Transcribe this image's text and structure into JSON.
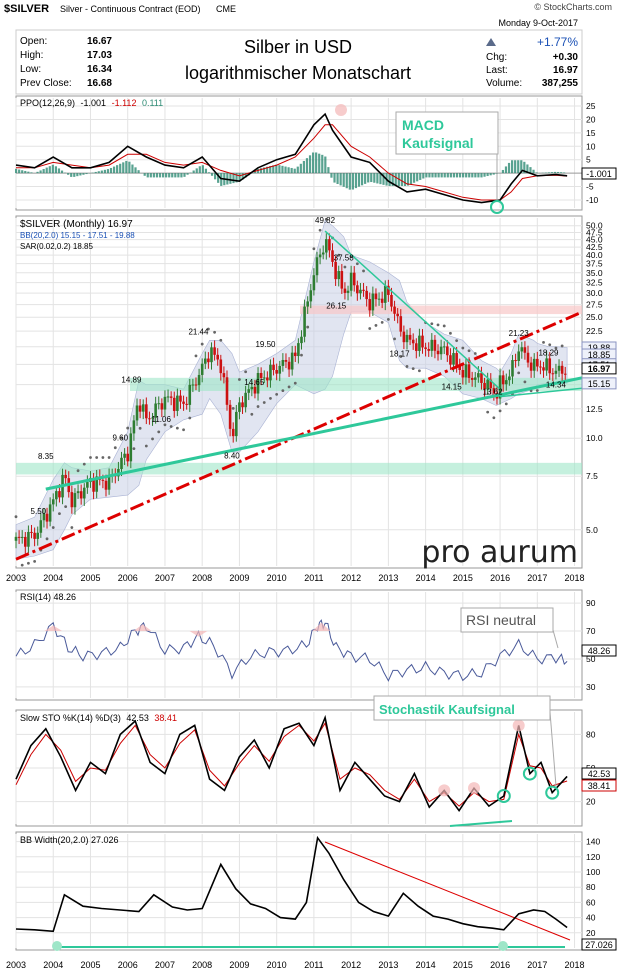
{
  "header": {
    "symbol": "$SILVER",
    "description": "Silver - Continuous Contract (EOD)",
    "exchange": "CME",
    "credit": "© StockCharts.com",
    "date": "Monday  9-Oct-2017",
    "change_pct": "+1.77%",
    "open_label": "Open:",
    "open": "16.67",
    "high_label": "High:",
    "high": "17.03",
    "low_label": "Low:",
    "low": "16.34",
    "prev_label": "Prev Close:",
    "prev": "16.68",
    "chg_label": "Chg:",
    "chg": "+0.30",
    "last_label": "Last:",
    "last": "16.97",
    "vol_label": "Volume:",
    "vol": "387,255",
    "title_line1": "Silber in USD",
    "title_line2": "logarithmischer Monatschart"
  },
  "watermark": "pro aurum",
  "colors": {
    "macd_line": "#000000",
    "signal_line": "#cc0000",
    "histogram": "#2e8b74",
    "callout": "#2ec89a",
    "price_up": "#2e7d32",
    "price_down": "#cc1111",
    "bb_fill": "#c8cfe6",
    "trend_red": "#dd0000",
    "green_zone": "#9ee6c8",
    "red_zone": "#f8c8c8"
  },
  "chart_data": [
    {
      "type": "line",
      "panel": "PPO",
      "legend_name": "PPO(12,26,9)",
      "legend_v1": "-1.001",
      "legend_v2": "-1.112",
      "legend_v3": "0.111",
      "yticks": [
        "25",
        "20",
        "15",
        "10",
        "5",
        "-5",
        "-10"
      ],
      "last_value": "-1.001",
      "annotation_line1": "MACD",
      "annotation_line2": "Kaufsignal",
      "ylim": [
        -13,
        28
      ],
      "x": [
        2003,
        2003.5,
        2004,
        2004.5,
        2005,
        2005.5,
        2006,
        2006.5,
        2007,
        2007.5,
        2008,
        2008.5,
        2009,
        2009.5,
        2010,
        2010.5,
        2011,
        2011.3,
        2011.5,
        2012,
        2012.5,
        2013,
        2013.5,
        2014,
        2014.5,
        2015,
        2015.5,
        2016,
        2016.3,
        2016.6,
        2017,
        2017.5,
        2017.8
      ],
      "series": [
        {
          "values": [
            3,
            2,
            6,
            2,
            2,
            4,
            10,
            6,
            3,
            2,
            6,
            -2,
            -3,
            2,
            5,
            7,
            18,
            22,
            16,
            6,
            4,
            -3,
            -7,
            -6,
            -8,
            -10,
            -11,
            -10,
            -4,
            1,
            -1,
            -0.5,
            -1.0
          ]
        },
        {
          "values": [
            2,
            2,
            4,
            3,
            2,
            3,
            7,
            7,
            4,
            3,
            4,
            1,
            -1,
            1,
            3,
            6,
            13,
            18,
            18,
            10,
            6,
            0,
            -4,
            -5,
            -7,
            -9,
            -10,
            -10,
            -7,
            -2,
            -1,
            -0.8,
            -1.1
          ]
        }
      ]
    },
    {
      "type": "bar",
      "panel": "price",
      "legend_main": "$SILVER (Monthly) 16.97",
      "legend_bb": "BB(20,2.0) 15.15 - 17.51 - 19.88",
      "legend_sar": "SAR(0.02,0.2) 18.85",
      "scale": "log",
      "ylim": [
        3.8,
        53
      ],
      "yticks": [
        "50.0",
        "47.5",
        "45.0",
        "42.5",
        "40.0",
        "37.5",
        "35.0",
        "32.5",
        "30.0",
        "27.5",
        "25.0",
        "22.5",
        "20.0",
        "17.5",
        "15.0",
        "12.5",
        "10.0",
        "7.5",
        "5.0"
      ],
      "last_labels": [
        "19.88",
        "18.85",
        "17.51",
        "16.97",
        "15.15"
      ],
      "xticks": [
        "2003",
        "2004",
        "2005",
        "2006",
        "2007",
        "2008",
        "2009",
        "2010",
        "2011",
        "2012",
        "2013",
        "2014",
        "2015",
        "2016",
        "2017",
        "2018"
      ],
      "annotations": [
        {
          "x": 2003.6,
          "y": 5.5,
          "text": "5.50"
        },
        {
          "x": 2003.8,
          "y": 8.35,
          "text": "8.35"
        },
        {
          "x": 2005.8,
          "y": 9.6,
          "text": "9.60"
        },
        {
          "x": 2006.1,
          "y": 14.89,
          "text": "14.89"
        },
        {
          "x": 2006.9,
          "y": 11.06,
          "text": "11.06"
        },
        {
          "x": 2007.9,
          "y": 21.44,
          "text": "21.44"
        },
        {
          "x": 2008.8,
          "y": 8.4,
          "text": "8.40"
        },
        {
          "x": 2009.4,
          "y": 14.65,
          "text": "14.65"
        },
        {
          "x": 2009.7,
          "y": 19.5,
          "text": "19.50"
        },
        {
          "x": 2011.3,
          "y": 49.82,
          "text": "49.82"
        },
        {
          "x": 2011.8,
          "y": 37.58,
          "text": "37.58"
        },
        {
          "x": 2011.6,
          "y": 26.15,
          "text": "26.15"
        },
        {
          "x": 2013.3,
          "y": 18.17,
          "text": "18.17"
        },
        {
          "x": 2014.7,
          "y": 14.15,
          "text": "14.15"
        },
        {
          "x": 2015.8,
          "y": 13.62,
          "text": "13.62"
        },
        {
          "x": 2016.5,
          "y": 21.23,
          "text": "21.23"
        },
        {
          "x": 2017.3,
          "y": 18.29,
          "text": "18.29"
        },
        {
          "x": 2017.5,
          "y": 14.34,
          "text": "14.34"
        }
      ],
      "price": {
        "x": [
          2003,
          2003.5,
          2004,
          2004.3,
          2004.5,
          2005,
          2005.5,
          2006,
          2006.3,
          2006.5,
          2007,
          2007.5,
          2008,
          2008.2,
          2008.5,
          2008.8,
          2009,
          2009.5,
          2010,
          2010.5,
          2011,
          2011.3,
          2011.5,
          2011.8,
          2012,
          2012.5,
          2013,
          2013.3,
          2013.5,
          2014,
          2014.5,
          2015,
          2015.5,
          2015.9,
          2016,
          2016.3,
          2016.5,
          2016.9,
          2017,
          2017.3,
          2017.5,
          2017.8
        ],
        "values": [
          4.6,
          4.8,
          6.2,
          7.5,
          6.2,
          7.2,
          7.2,
          9.0,
          13.5,
          11.5,
          13.5,
          13.0,
          17.0,
          19.5,
          17.5,
          10.0,
          13.0,
          15.5,
          17.0,
          18.5,
          35.0,
          45.0,
          38.0,
          30.0,
          33.0,
          28.0,
          30.0,
          23.0,
          21.0,
          20.0,
          19.5,
          16.5,
          15.5,
          14.0,
          15.0,
          16.5,
          20.0,
          17.0,
          17.5,
          17.0,
          16.5,
          16.97
        ]
      },
      "bb_upper": [
        5.2,
        5.5,
        7.3,
        8.3,
        8.0,
        7.8,
        8.0,
        10.5,
        15.5,
        15.0,
        15.0,
        14.5,
        19.0,
        21.0,
        21.0,
        19.0,
        16.5,
        17.5,
        19.0,
        21.0,
        38.0,
        52.0,
        50.0,
        46.0,
        40.0,
        38.0,
        35.0,
        33.0,
        28.0,
        24.0,
        22.0,
        21.0,
        18.0,
        17.0,
        16.5,
        19.0,
        22.0,
        21.0,
        20.5,
        20.0,
        20.0,
        19.88
      ],
      "bb_lower": [
        4.0,
        4.1,
        4.3,
        5.0,
        5.6,
        6.3,
        6.4,
        6.5,
        7.0,
        8.5,
        10.5,
        11.5,
        12.0,
        13.5,
        12.0,
        9.0,
        9.0,
        10.5,
        13.0,
        15.0,
        14.0,
        14.5,
        16.0,
        22.0,
        26.0,
        26.0,
        24.0,
        18.0,
        17.0,
        17.0,
        16.0,
        14.0,
        13.5,
        12.8,
        13.0,
        13.5,
        14.0,
        14.5,
        15.0,
        15.2,
        15.1,
        15.15
      ]
    },
    {
      "type": "line",
      "panel": "RSI",
      "legend": "RSI(14) 48.26",
      "yticks": [
        "90",
        "70",
        "50",
        "30"
      ],
      "last_value": "48.26",
      "annotation": "RSI neutral",
      "ylim": [
        22,
        98
      ],
      "x": [
        2003,
        2003.5,
        2004,
        2004.4,
        2004.8,
        2005.3,
        2005.8,
        2006.2,
        2006.5,
        2007,
        2007.5,
        2007.9,
        2008.3,
        2008.8,
        2009.3,
        2009.8,
        2010.3,
        2010.8,
        2011.1,
        2011.3,
        2011.6,
        2012,
        2012.5,
        2013,
        2013.5,
        2014,
        2014.5,
        2015,
        2015.5,
        2016,
        2016.5,
        2017,
        2017.5,
        2017.8
      ],
      "values": [
        52,
        60,
        74,
        58,
        52,
        54,
        58,
        70,
        74,
        56,
        58,
        66,
        60,
        40,
        52,
        55,
        56,
        60,
        74,
        76,
        58,
        52,
        50,
        38,
        42,
        44,
        40,
        38,
        40,
        52,
        60,
        50,
        51,
        48.26
      ]
    },
    {
      "type": "line",
      "panel": "Stochastic",
      "legend_name": "Slow STO %K(14) %D(3)",
      "legend_k": "42.53",
      "legend_d": "38.41",
      "yticks": [
        "80",
        "50",
        "20"
      ],
      "last_values": [
        "42.53",
        "38.41"
      ],
      "annotation": "Stochastik Kaufsignal",
      "ylim": [
        0,
        100
      ],
      "x": [
        2003,
        2003.4,
        2003.8,
        2004.2,
        2004.6,
        2005,
        2005.4,
        2005.8,
        2006.2,
        2006.6,
        2007,
        2007.4,
        2007.8,
        2008.2,
        2008.6,
        2009,
        2009.4,
        2009.8,
        2010.2,
        2010.6,
        2011,
        2011.3,
        2011.7,
        2012.1,
        2012.5,
        2012.9,
        2013.3,
        2013.7,
        2014.1,
        2014.5,
        2014.9,
        2015.3,
        2015.7,
        2016.1,
        2016.5,
        2016.8,
        2017.1,
        2017.4,
        2017.8
      ],
      "k": [
        40,
        70,
        85,
        60,
        30,
        55,
        45,
        80,
        92,
        55,
        45,
        80,
        88,
        40,
        30,
        60,
        75,
        50,
        85,
        90,
        70,
        95,
        30,
        55,
        40,
        25,
        20,
        45,
        15,
        30,
        12,
        32,
        16,
        25,
        88,
        45,
        55,
        28,
        42.53
      ],
      "d": [
        35,
        62,
        80,
        66,
        38,
        50,
        48,
        72,
        88,
        62,
        50,
        72,
        84,
        48,
        34,
        54,
        70,
        56,
        78,
        88,
        74,
        90,
        40,
        50,
        44,
        30,
        22,
        40,
        20,
        28,
        16,
        28,
        20,
        22,
        80,
        52,
        50,
        34,
        38.41
      ]
    },
    {
      "type": "line",
      "panel": "BB Width",
      "legend": "BB Width(20,2.0) 27.026",
      "yticks": [
        "140",
        "120",
        "100",
        "80",
        "60",
        "40",
        "20"
      ],
      "last_value": "27.026",
      "ylim": [
        0,
        150
      ],
      "xticks": [
        "2003",
        "2004",
        "2005",
        "2006",
        "2007",
        "2008",
        "2009",
        "2010",
        "2011",
        "2012",
        "2013",
        "2014",
        "2015",
        "2016",
        "2017",
        "2018"
      ],
      "x": [
        2003,
        2003.5,
        2004,
        2004.3,
        2004.8,
        2005.3,
        2005.8,
        2006.3,
        2006.7,
        2007.2,
        2007.6,
        2008,
        2008.5,
        2008.9,
        2009.3,
        2009.7,
        2010.1,
        2010.5,
        2010.8,
        2011.1,
        2011.4,
        2011.8,
        2012.2,
        2012.6,
        2013,
        2013.4,
        2013.8,
        2014.2,
        2014.6,
        2015,
        2015.4,
        2015.8,
        2016.1,
        2016.5,
        2016.9,
        2017.2,
        2017.5,
        2017.8
      ],
      "values": [
        25,
        24,
        22,
        70,
        55,
        52,
        50,
        48,
        70,
        54,
        50,
        52,
        110,
        78,
        58,
        52,
        40,
        38,
        60,
        145,
        125,
        90,
        60,
        48,
        42,
        72,
        55,
        42,
        38,
        32,
        28,
        26,
        24,
        45,
        50,
        48,
        38,
        27.026
      ]
    }
  ]
}
